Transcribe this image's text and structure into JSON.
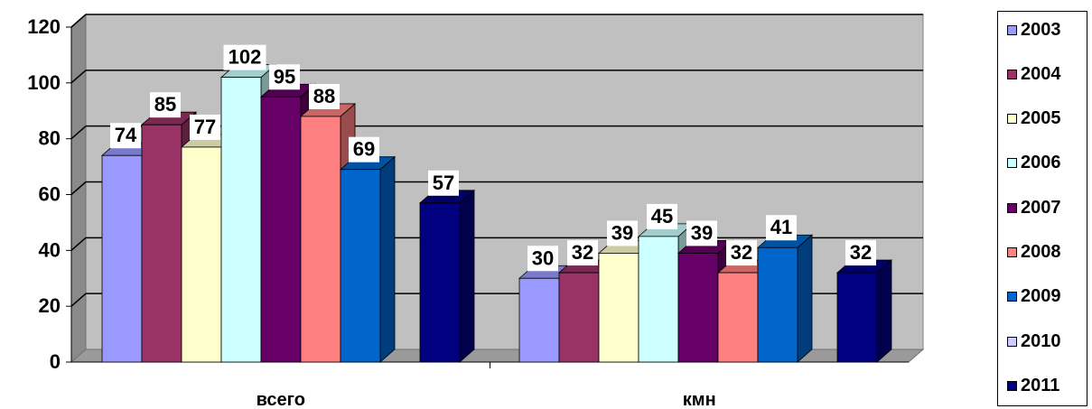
{
  "chart_data": {
    "type": "bar",
    "categories": [
      "всего",
      "кмн"
    ],
    "series": [
      {
        "name": "2003",
        "values": [
          74,
          30
        ],
        "color": "#9999ff"
      },
      {
        "name": "2004",
        "values": [
          85,
          32
        ],
        "color": "#993366"
      },
      {
        "name": "2005",
        "values": [
          77,
          39
        ],
        "color": "#ffffcc"
      },
      {
        "name": "2006",
        "values": [
          102,
          45
        ],
        "color": "#ccffff"
      },
      {
        "name": "2007",
        "values": [
          95,
          39
        ],
        "color": "#660066"
      },
      {
        "name": "2008",
        "values": [
          88,
          32
        ],
        "color": "#ff8080"
      },
      {
        "name": "2009",
        "values": [
          69,
          41
        ],
        "color": "#0066cc"
      },
      {
        "name": "2010",
        "values": [
          null,
          null
        ],
        "color": "#ccccff"
      },
      {
        "name": "2011",
        "values": [
          57,
          32
        ],
        "color": "#000080"
      }
    ],
    "ylim": [
      0,
      120
    ],
    "yticks": [
      "0",
      "20",
      "40",
      "60",
      "80",
      "100",
      "120"
    ],
    "grid": true,
    "legend": "right",
    "style": "3d-clustered-column",
    "wall_color": "#c0c0c0"
  }
}
